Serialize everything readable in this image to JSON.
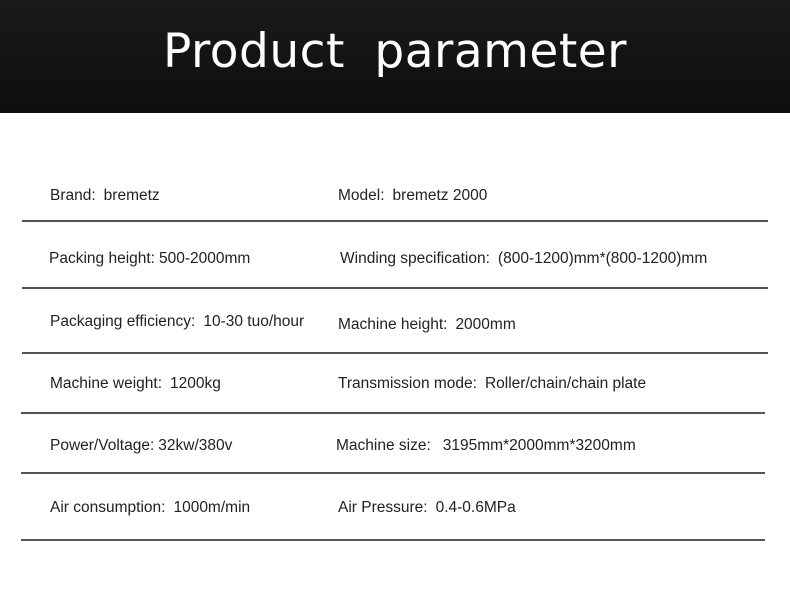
{
  "header": {
    "title": "Product  parameter"
  },
  "rows": [
    {
      "left": {
        "label": "Brand:",
        "value": "bremetz"
      },
      "right": {
        "label": "Model:",
        "value": "bremetz 2000"
      }
    },
    {
      "left": {
        "label": "Packing height:",
        "value": "500-2000mm"
      },
      "right": {
        "label": "Winding specification:",
        "value": "(800-1200)mm*(800-1200)mm"
      }
    },
    {
      "left": {
        "label": "Packaging efficiency:",
        "value": "10-30 tuo/hour"
      },
      "right": {
        "label": "Machine height:",
        "value": "2000mm"
      }
    },
    {
      "left": {
        "label": "Machine weight:",
        "value": "1200kg"
      },
      "right": {
        "label": "Transmission mode:",
        "value": "Roller/chain/chain plate"
      }
    },
    {
      "left": {
        "label": "Power/Voltage:",
        "value": "32kw/380v"
      },
      "right": {
        "label": "Machine size:",
        "value": "3195mm*2000mm*3200mm"
      }
    },
    {
      "left": {
        "label": "Air consumption:",
        "value": "1000m/min"
      },
      "right": {
        "label": "Air Pressure:",
        "value": "0.4-0.6MPa"
      }
    }
  ]
}
